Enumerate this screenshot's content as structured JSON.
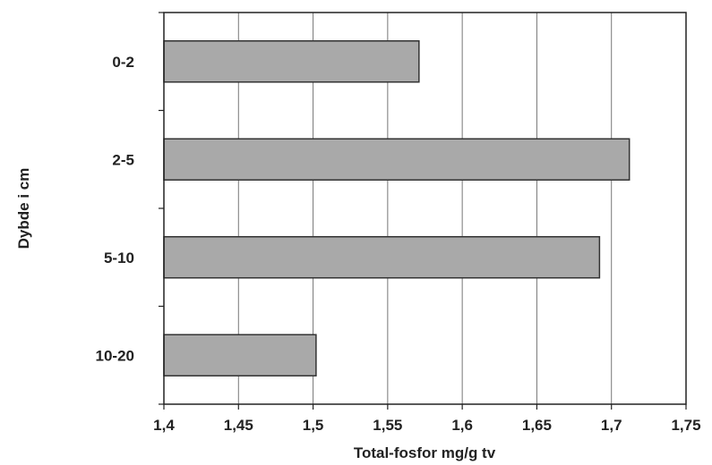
{
  "chart_data": {
    "type": "bar",
    "orientation": "horizontal",
    "categories": [
      "0-2",
      "2-5",
      "5-10",
      "10-20"
    ],
    "values": [
      1.571,
      1.712,
      1.692,
      1.502
    ],
    "xlabel": "Total-fosfor mg/g tv",
    "ylabel": "Dybde i cm",
    "xlim": [
      1.4,
      1.75
    ],
    "xticks": [
      "1,4",
      "1,45",
      "1,5",
      "1,55",
      "1,6",
      "1,65",
      "1,7",
      "1,75"
    ],
    "grid": true,
    "colors": {
      "bar": "#a9a9a9",
      "bar_border": "#333333"
    }
  }
}
